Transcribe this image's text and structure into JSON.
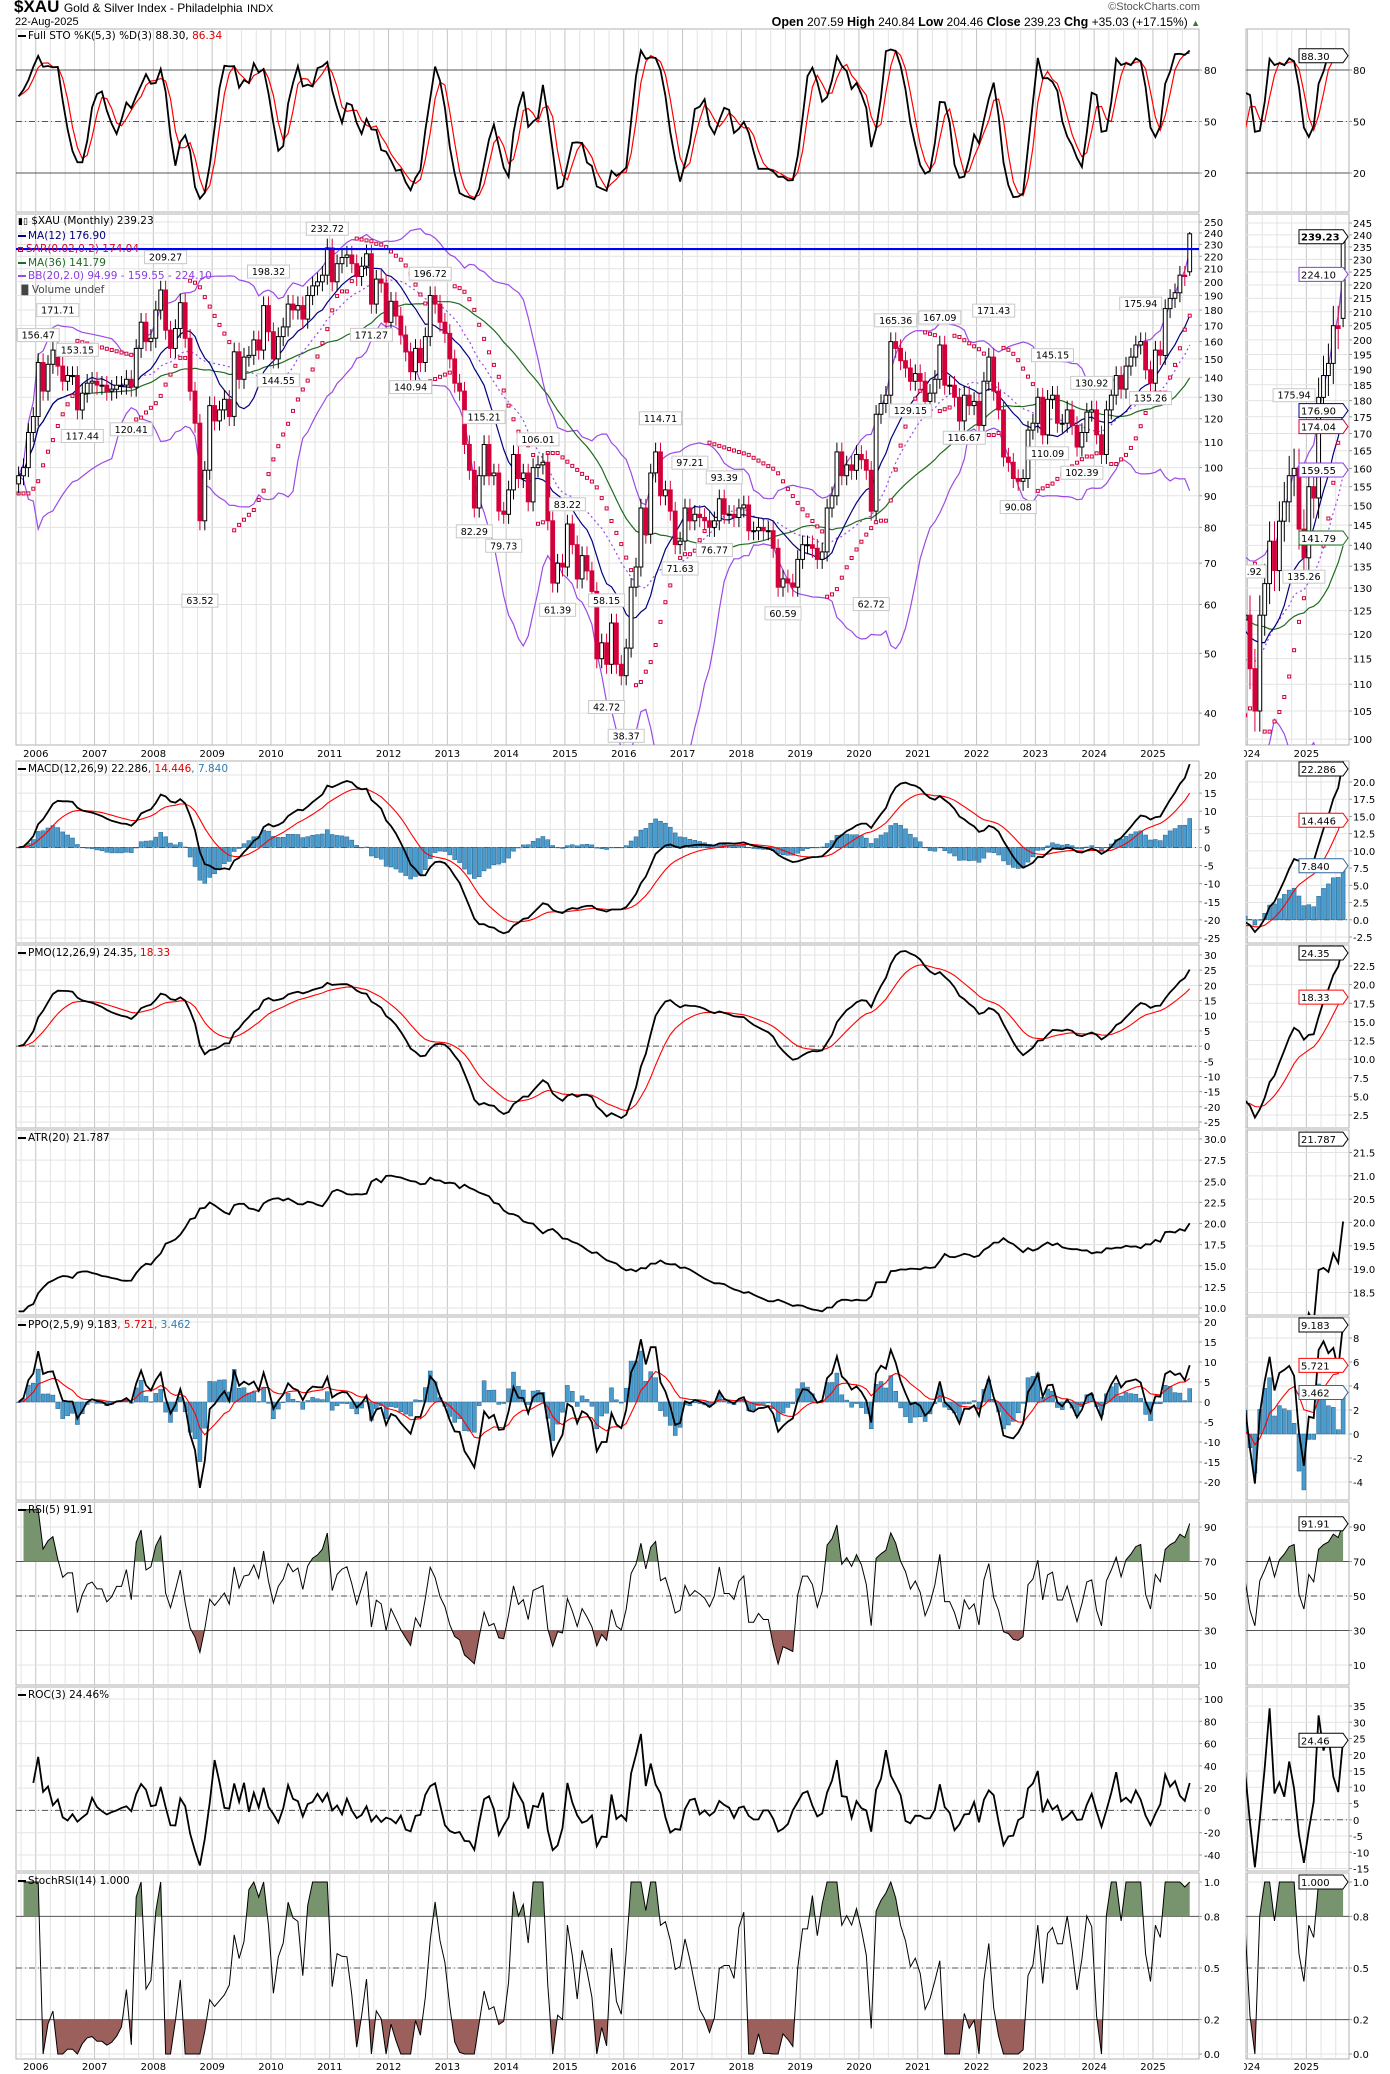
{
  "header": {
    "symbol": "$XAU",
    "name": "Gold & Silver Index - Philadelphia",
    "exchange": "INDX",
    "date": "22-Aug-2025",
    "copyright": "©StockCharts.com",
    "open_label": "Open",
    "open": "207.59",
    "high_label": "High",
    "high": "240.84",
    "low_label": "Low",
    "low": "204.46",
    "close_label": "Close",
    "close": "239.23",
    "chg_label": "Chg",
    "chg": "+35.03 (+17.15%)",
    "chg_arrow": "▲"
  },
  "chart_data": {
    "type": "candlestick",
    "title": "$XAU (Monthly) 239.23",
    "colors": {
      "up": "#ffffff",
      "down": "#d4003b",
      "ma12": "#00007f",
      "ma36": "#1f6b1f",
      "bb": "#9a4be6",
      "sar": "#d4003b",
      "signal": "#ff0000",
      "hist": "#4a9ccc",
      "hist_edge": "#1f5f8f",
      "line": "#000000",
      "fill_high": "#77946e",
      "fill_low": "#9b5f5c",
      "hline": "#0000ff",
      "grid": "#e3e3e3",
      "grid_year": "#c4c4c4",
      "level": "#555555"
    },
    "x_axis_years": [
      "2006",
      "2007",
      "2008",
      "2009",
      "2010",
      "2011",
      "2012",
      "2013",
      "2014",
      "2015",
      "2016",
      "2017",
      "2018",
      "2019",
      "2020",
      "2021",
      "2022",
      "2023",
      "2024",
      "2025"
    ],
    "side_axis_years": [
      "2024",
      "2025"
    ],
    "price": {
      "scale": "log",
      "last_ohlc": {
        "open": 207.59,
        "high": 240.84,
        "low": 204.46,
        "close": 239.23
      },
      "monthly_close": {
        "2005": [
          null,
          null,
          null,
          null,
          null,
          null,
          null,
          null,
          97,
          100,
          114,
          121
        ],
        "2006": [
          148,
          133,
          147,
          155,
          146,
          138,
          141,
          141,
          124,
          132,
          137,
          138
        ],
        "2007": [
          136,
          136,
          133,
          134,
          136,
          136,
          139,
          135,
          156,
          172,
          160,
          162
        ],
        "2008": [
          180,
          194,
          167,
          156,
          168,
          185,
          162,
          133,
          118,
          82,
          99,
          126
        ],
        "2009": [
          119,
          124,
          129,
          121,
          154,
          139,
          151,
          152,
          161,
          155,
          183,
          166
        ],
        "2010": [
          150,
          163,
          169,
          184,
          180,
          183,
          174,
          190,
          197,
          200,
          205,
          227
        ],
        "2011": [
          200,
          214,
          219,
          221,
          214,
          204,
          212,
          222,
          184,
          202,
          199,
          172
        ],
        "2012": [
          186,
          176,
          164,
          154,
          143,
          156,
          148,
          163,
          190,
          184,
          172,
          165
        ],
        "2013": [
          150,
          137,
          133,
          109,
          99,
          86,
          97,
          109,
          97,
          98,
          85,
          84
        ],
        "2014": [
          92,
          105,
          96,
          98,
          88,
          100,
          101,
          102,
          82,
          65,
          70,
          69
        ],
        "2015": [
          81,
          75,
          66,
          72,
          68,
          63,
          49,
          52,
          48,
          56,
          48,
          46
        ],
        "2016": [
          51,
          64,
          69,
          86,
          78,
          98,
          106,
          90,
          92,
          85,
          75,
          76
        ],
        "2017": [
          86,
          82,
          84,
          83,
          82,
          80,
          82,
          89,
          84,
          84,
          83,
          86
        ],
        "2018": [
          87,
          79,
          79,
          80,
          79,
          79,
          74,
          64,
          66,
          65,
          64,
          71
        ],
        "2019": [
          75,
          75,
          74,
          71,
          73,
          86,
          90,
          106,
          97,
          101,
          99,
          105
        ],
        "2020": [
          103,
          99,
          85,
          122,
          127,
          131,
          160,
          156,
          149,
          145,
          138,
          142
        ],
        "2021": [
          138,
          128,
          132,
          139,
          158,
          136,
          136,
          130,
          119,
          131,
          126,
          128
        ],
        "2022": [
          117,
          138,
          151,
          133,
          124,
          104,
          102,
          96,
          95,
          96,
          115,
          118
        ],
        "2023": [
          130,
          113,
          129,
          131,
          118,
          118,
          124,
          117,
          108,
          114,
          123,
          124
        ],
        "2024": [
          113,
          105,
          124,
          131,
          141,
          134,
          146,
          151,
          158,
          160,
          144,
          137
        ],
        "2025": [
          155,
          152,
          181,
          188,
          192,
          205,
          204,
          239.23
        ]
      },
      "horizontal_line": {
        "value": 226,
        "color": "#0000ff"
      },
      "legend": {
        "title": "$XAU (Monthly) 239.23",
        "ma12": "MA(12) 176.90",
        "sar": "SAR(0.02,0.2) 174.04",
        "ma36": "MA(36) 141.79",
        "bb": "BB(20,2.0) 94.99 - 159.55 - 224.10",
        "volume": "Volume undef"
      },
      "ticks_main": [
        "250",
        "240",
        "230",
        "220",
        "210",
        "200",
        "190",
        "180",
        "170",
        "160",
        "150",
        "140",
        "130",
        "120",
        "110",
        "100",
        "90",
        "80",
        "70",
        "60",
        "50",
        "40"
      ],
      "ticks_side": [
        "245",
        "240",
        "235",
        "230",
        "225",
        "220",
        "215",
        "210",
        "205",
        "200",
        "195",
        "190",
        "185",
        "180",
        "175",
        "170",
        "165",
        "160",
        "155",
        "150",
        "145",
        "140",
        "135",
        "130",
        "125",
        "120",
        "115",
        "110",
        "105",
        "100"
      ],
      "tags": [
        {
          "text": "239.23",
          "color": "#000000",
          "bold": true
        },
        {
          "text": "224.10",
          "color": "#8a3fe0"
        },
        {
          "text": "176.90",
          "color": "#00007f"
        },
        {
          "text": "174.04",
          "color": "#d4003b"
        },
        {
          "text": "159.55",
          "color": "#8a3fe0"
        },
        {
          "text": "141.79",
          "color": "#1f6b1f"
        }
      ],
      "annotations": [
        {
          "text": "156.47",
          "date": "2006-01",
          "value": 156.47,
          "type": "high"
        },
        {
          "text": "171.71",
          "date": "2006-05",
          "value": 171.71,
          "type": "high"
        },
        {
          "text": "153.15",
          "date": "2006-09",
          "value": 153.15,
          "type": "high"
        },
        {
          "text": "117.44",
          "date": "2006-10",
          "value": 117.44,
          "type": "low"
        },
        {
          "text": "120.41",
          "date": "2007-08",
          "value": 120.41,
          "type": "low"
        },
        {
          "text": "209.27",
          "date": "2008-03",
          "value": 209.27,
          "type": "high"
        },
        {
          "text": "63.52",
          "date": "2008-10",
          "value": 63.52,
          "type": "low"
        },
        {
          "text": "198.32",
          "date": "2009-12",
          "value": 198.32,
          "type": "high"
        },
        {
          "text": "144.55",
          "date": "2010-02",
          "value": 144.55,
          "type": "low"
        },
        {
          "text": "232.72",
          "date": "2010-12",
          "value": 232.72,
          "type": "high"
        },
        {
          "text": "171.27",
          "date": "2011-09",
          "value": 171.27,
          "type": "low"
        },
        {
          "text": "140.94",
          "date": "2012-05",
          "value": 140.94,
          "type": "low"
        },
        {
          "text": "196.72",
          "date": "2012-09",
          "value": 196.72,
          "type": "high"
        },
        {
          "text": "82.29",
          "date": "2013-06",
          "value": 82.29,
          "type": "low"
        },
        {
          "text": "115.21",
          "date": "2013-08",
          "value": 115.21,
          "type": "high"
        },
        {
          "text": "79.73",
          "date": "2013-12",
          "value": 79.73,
          "type": "low"
        },
        {
          "text": "106.01",
          "date": "2014-07",
          "value": 106.01,
          "type": "high"
        },
        {
          "text": "61.39",
          "date": "2014-11",
          "value": 61.39,
          "type": "low"
        },
        {
          "text": "83.22",
          "date": "2015-01",
          "value": 83.22,
          "type": "high"
        },
        {
          "text": "58.15",
          "date": "2015-09",
          "value": 58.15,
          "type": "high"
        },
        {
          "text": "42.72",
          "date": "2015-09",
          "value": 42.72,
          "type": "low"
        },
        {
          "text": "38.37",
          "date": "2016-01",
          "value": 38.37,
          "type": "low"
        },
        {
          "text": "114.71",
          "date": "2016-08",
          "value": 114.71,
          "type": "high"
        },
        {
          "text": "71.63",
          "date": "2016-12",
          "value": 71.63,
          "type": "low"
        },
        {
          "text": "97.21",
          "date": "2017-02",
          "value": 97.21,
          "type": "high"
        },
        {
          "text": "76.77",
          "date": "2017-07",
          "value": 76.77,
          "type": "low"
        },
        {
          "text": "93.39",
          "date": "2017-09",
          "value": 93.39,
          "type": "high"
        },
        {
          "text": "60.59",
          "date": "2018-09",
          "value": 60.59,
          "type": "low"
        },
        {
          "text": "62.72",
          "date": "2020-03",
          "value": 62.72,
          "type": "low"
        },
        {
          "text": "165.36",
          "date": "2020-08",
          "value": 165.36,
          "type": "high"
        },
        {
          "text": "129.15",
          "date": "2020-11",
          "value": 129.15,
          "type": "low"
        },
        {
          "text": "167.09",
          "date": "2021-05",
          "value": 167.09,
          "type": "high"
        },
        {
          "text": "116.67",
          "date": "2021-10",
          "value": 116.67,
          "type": "low"
        },
        {
          "text": "171.43",
          "date": "2022-04",
          "value": 171.43,
          "type": "high"
        },
        {
          "text": "90.08",
          "date": "2022-09",
          "value": 90.08,
          "type": "low"
        },
        {
          "text": "110.09",
          "date": "2023-03",
          "value": 110.09,
          "type": "low"
        },
        {
          "text": "145.15",
          "date": "2023-04",
          "value": 145.15,
          "type": "high"
        },
        {
          "text": "102.39",
          "date": "2023-10",
          "value": 102.39,
          "type": "low"
        },
        {
          "text": "130.92",
          "date": "2023-12",
          "value": 130.92,
          "type": "high"
        },
        {
          "text": "175.94",
          "date": "2024-10",
          "value": 175.94,
          "type": "high"
        },
        {
          "text": "135.26",
          "date": "2024-12",
          "value": 135.26,
          "type": "low"
        }
      ]
    },
    "panels": {
      "sto": {
        "legend": {
          "name": "Full STO %K(5,3) %D(3)",
          "k": "88.30,",
          "d": "86.34"
        },
        "ticks_main": [
          "80",
          "50",
          "20"
        ],
        "ticks_side": [
          "80",
          "50",
          "20"
        ],
        "levels_solid": [
          80,
          20
        ],
        "levels_dashdot": [
          50
        ],
        "tags": [
          {
            "text": "88.30",
            "color": "#000000"
          }
        ]
      },
      "macd": {
        "legend": {
          "name": "MACD(12,26,9)",
          "macd": "22.286",
          "signal": ", 14.446",
          "hist": ", 7.840"
        },
        "ticks_main": [
          "20",
          "15",
          "10",
          "5",
          "0",
          "-5",
          "-10",
          "-15",
          "-20",
          "-25"
        ],
        "ticks_side": [
          "20.0",
          "17.5",
          "15.0",
          "12.5",
          "10.0",
          "7.5",
          "5.0",
          "2.5",
          "0.0",
          "-2.5"
        ],
        "levels_solid": [],
        "levels_dashdot": [
          0
        ],
        "tags": [
          {
            "text": "22.286",
            "color": "#000000"
          },
          {
            "text": "14.446",
            "color": "#ff0000"
          },
          {
            "text": "7.840",
            "color": "#336699"
          }
        ]
      },
      "pmo": {
        "legend": {
          "name": "PMO(12,26,9)",
          "pmo": "24.35,",
          "signal": "18.33"
        },
        "ticks_main": [
          "30",
          "25",
          "20",
          "15",
          "10",
          "5",
          "0",
          "-5",
          "-10",
          "-15",
          "-20",
          "-25"
        ],
        "ticks_side": [
          "22.5",
          "20.0",
          "17.5",
          "15.0",
          "12.5",
          "10.0",
          "7.5",
          "5.0",
          "2.5"
        ],
        "levels_solid": [],
        "levels_dashdot": [
          0
        ],
        "tags": [
          {
            "text": "24.35",
            "color": "#000000"
          },
          {
            "text": "18.33",
            "color": "#ff0000"
          }
        ]
      },
      "atr": {
        "legend": {
          "name": "ATR(20)",
          "atr": "21.787"
        },
        "ticks_main": [
          "30.0",
          "27.5",
          "25.0",
          "22.5",
          "20.0",
          "17.5",
          "15.0",
          "12.5",
          "10.0"
        ],
        "ticks_side": [
          "21.5",
          "21.0",
          "20.5",
          "20.0",
          "19.5",
          "19.0",
          "18.5"
        ],
        "levels_solid": [],
        "levels_dashdot": [],
        "tags": [
          {
            "text": "21.787",
            "color": "#000000"
          }
        ]
      },
      "ppo": {
        "legend": {
          "name": "PPO(2,5,9)",
          "ppo": "9.183",
          "signal": ", 5.721",
          "hist": ", 3.462"
        },
        "ticks_main": [
          "20",
          "15",
          "10",
          "5",
          "0",
          "-5",
          "-10",
          "-15",
          "-20"
        ],
        "ticks_side": [
          "8",
          "6",
          "4",
          "2",
          "0",
          "-2",
          "-4"
        ],
        "levels_solid": [],
        "levels_dashdot": [],
        "tags": [
          {
            "text": "9.183",
            "color": "#000000"
          },
          {
            "text": "5.721",
            "color": "#ff0000"
          },
          {
            "text": "3.462",
            "color": "#336699"
          }
        ]
      },
      "rsi": {
        "legend": {
          "name": "RSI(5)",
          "rsi": "91.91"
        },
        "ticks_main": [
          "90",
          "70",
          "50",
          "30",
          "10"
        ],
        "ticks_side": [
          "90",
          "70",
          "50",
          "30",
          "10"
        ],
        "levels_solid": [
          70,
          30
        ],
        "levels_dashdot": [
          50
        ],
        "tags": [
          {
            "text": "91.91",
            "color": "#000000"
          }
        ]
      },
      "roc": {
        "legend": {
          "name": "ROC(3)",
          "roc": "24.46%"
        },
        "ticks_main": [
          "100",
          "80",
          "60",
          "40",
          "20",
          "0",
          "-20",
          "-40"
        ],
        "ticks_side": [
          "35",
          "30",
          "25",
          "20",
          "15",
          "10",
          "5",
          "0",
          "-5",
          "-10",
          "-15"
        ],
        "levels_solid": [],
        "levels_dashdot": [
          0
        ],
        "tags": [
          {
            "text": "24.46",
            "color": "#000000"
          }
        ]
      },
      "srsi": {
        "legend": {
          "name": "StochRSI(14)",
          "srsi": "1.000"
        },
        "ticks_main": [
          "1.0",
          "0.8",
          "0.5",
          "0.2",
          "0.0"
        ],
        "ticks_side": [
          "1.0",
          "0.8",
          "0.5",
          "0.2",
          "0.0"
        ],
        "levels_solid": [
          0.8,
          0.2
        ],
        "levels_dashdot": [
          0.5
        ],
        "tags": [
          {
            "text": "1.000",
            "color": "#000000"
          }
        ]
      }
    }
  }
}
